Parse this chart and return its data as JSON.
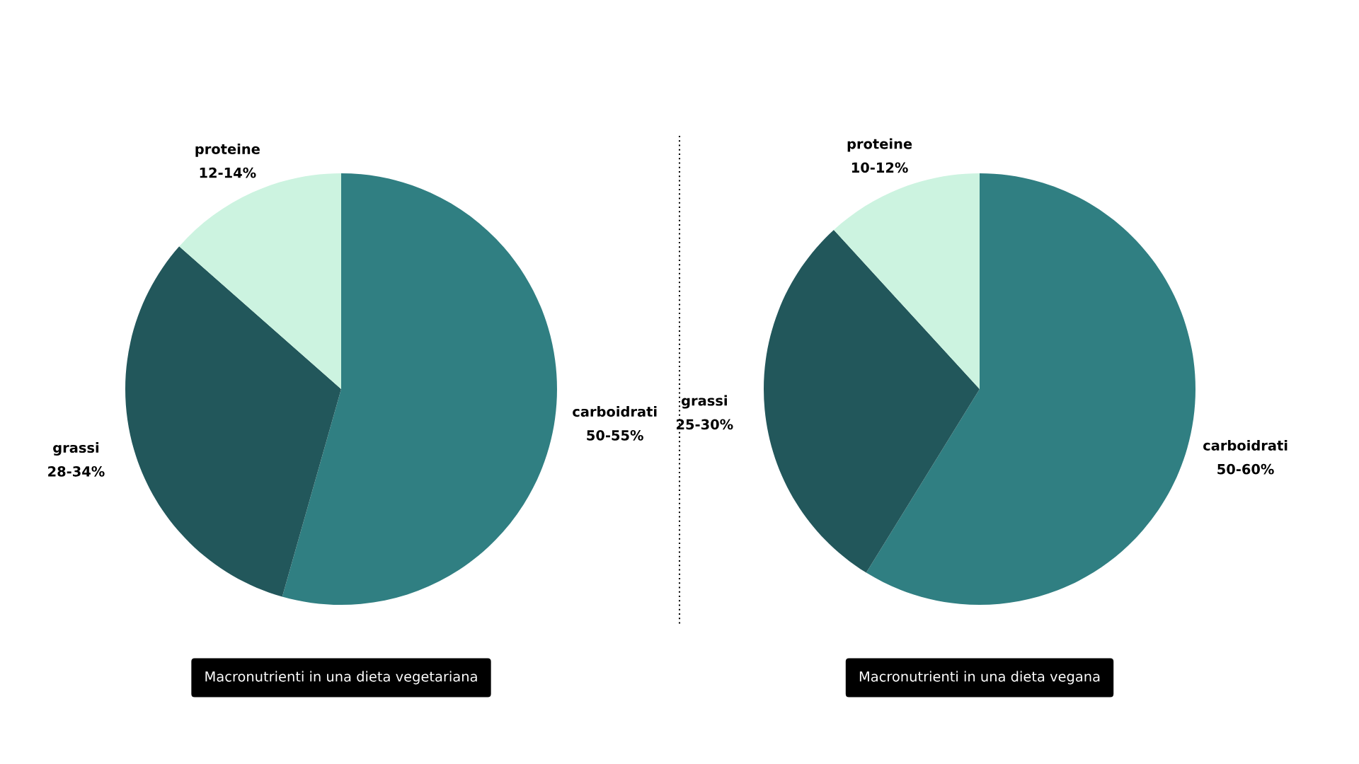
{
  "chart_data": [
    {
      "type": "pie",
      "title": "Macronutrienti in una dieta vegetariana",
      "categories": [
        "carboidrati",
        "grassi",
        "proteine"
      ],
      "values": [
        54.4,
        32.1,
        13.5
      ],
      "colors": [
        "#307f82",
        "#22575b",
        "#ccf3e0"
      ],
      "annotations": [
        {
          "text": "50-55%",
          "x": "carboidrati"
        },
        {
          "text": "28-34%",
          "x": "grassi"
        },
        {
          "text": "12-14%",
          "x": "proteine"
        }
      ]
    },
    {
      "type": "pie",
      "title": "Macronutrienti in una dieta vegana",
      "categories": [
        "carboidrati",
        "grassi",
        "proteine"
      ],
      "values": [
        58.8,
        29.4,
        11.8
      ],
      "colors": [
        "#307f82",
        "#22575b",
        "#ccf3e0"
      ],
      "annotations": [
        {
          "text": "50-60%",
          "x": "carboidrati"
        },
        {
          "text": "25-30%",
          "x": "grassi"
        },
        {
          "text": "10-12%",
          "x": "proteine"
        }
      ]
    }
  ]
}
